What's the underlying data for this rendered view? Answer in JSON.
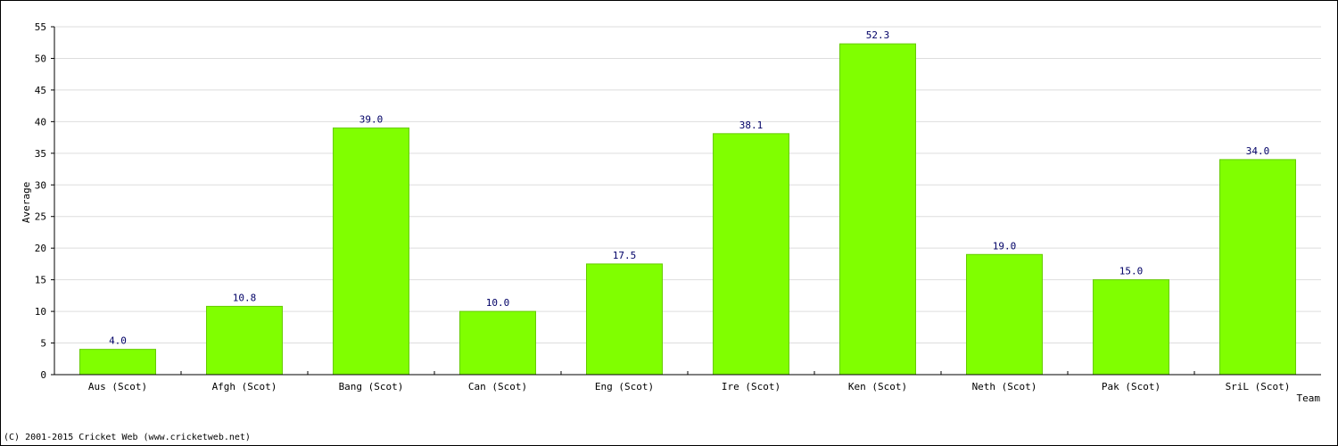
{
  "chart_data": {
    "type": "bar",
    "categories": [
      "Aus (Scot)",
      "Afgh (Scot)",
      "Bang (Scot)",
      "Can (Scot)",
      "Eng (Scot)",
      "Ire (Scot)",
      "Ken (Scot)",
      "Neth (Scot)",
      "Pak (Scot)",
      "SriL (Scot)"
    ],
    "values": [
      4.0,
      10.8,
      39.0,
      10.0,
      17.5,
      38.1,
      52.3,
      19.0,
      15.0,
      34.0
    ],
    "value_labels": [
      "4.0",
      "10.8",
      "39.0",
      "10.0",
      "17.5",
      "38.1",
      "52.3",
      "19.0",
      "15.0",
      "34.0"
    ],
    "xlabel": "Team",
    "ylabel": "Average",
    "ylim": [
      0,
      55
    ],
    "yticks": [
      0,
      5,
      10,
      15,
      20,
      25,
      30,
      35,
      40,
      45,
      50,
      55
    ],
    "grid": true,
    "colors": {
      "bar": "#80ff00",
      "bar_edge": "#66cc00",
      "value_label": "#000066",
      "grid": "#dddddd"
    }
  },
  "footer": {
    "copyright": "(C) 2001-2015 Cricket Web (www.cricketweb.net)"
  }
}
